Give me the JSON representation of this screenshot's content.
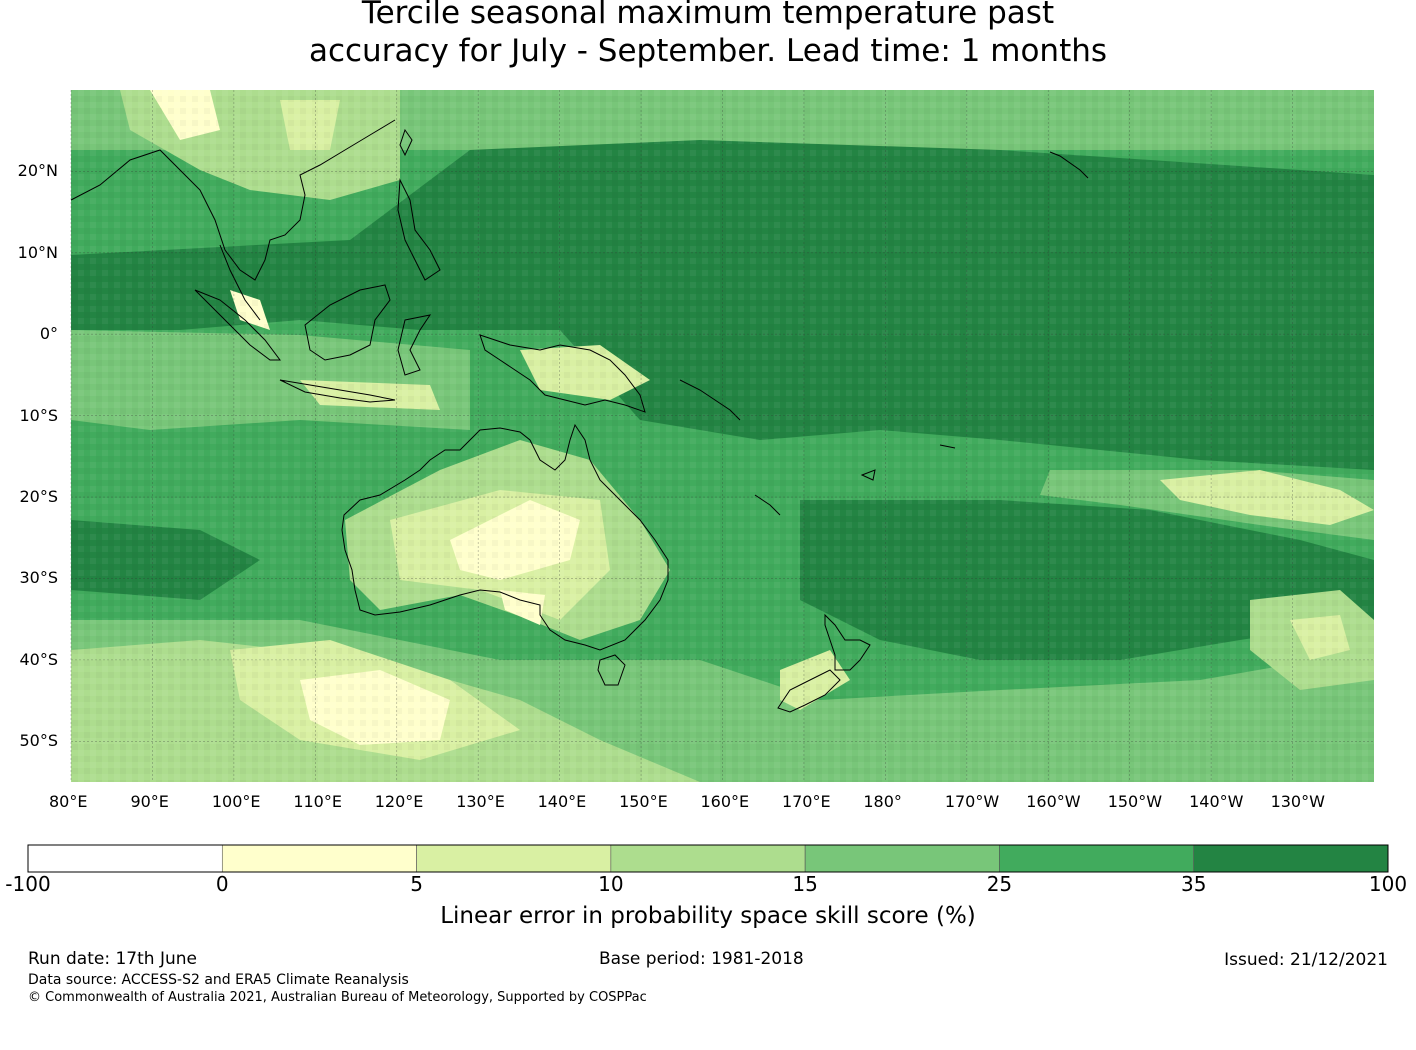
{
  "title": {
    "line1": "Tercile seasonal maximum temperature past",
    "line2": "accuracy for July - September. Lead time: 1 months"
  },
  "map": {
    "lat_labels": [
      "20°N",
      "10°N",
      "0°",
      "10°S",
      "20°S",
      "30°S",
      "40°S",
      "50°S"
    ],
    "lat_values": [
      20,
      10,
      0,
      -10,
      -20,
      -30,
      -40,
      -50
    ],
    "lon_labels": [
      "80°E",
      "90°E",
      "100°E",
      "110°E",
      "120°E",
      "130°E",
      "140°E",
      "150°E",
      "160°E",
      "170°E",
      "180°",
      "170°W",
      "160°W",
      "150°W",
      "140°W",
      "130°W"
    ],
    "lon_values": [
      80,
      90,
      100,
      110,
      120,
      130,
      140,
      150,
      160,
      170,
      180,
      190,
      200,
      210,
      220,
      230
    ],
    "lon_range": [
      80,
      240
    ],
    "lat_range": [
      -55,
      30
    ],
    "gridlines": true,
    "coastlines": true
  },
  "colorbar": {
    "label": "Linear error in probability space skill score (%)",
    "ticks": [
      "-100",
      "0",
      "5",
      "10",
      "15",
      "25",
      "35",
      "100"
    ],
    "colors": [
      "#ffffff",
      "#ffffcc",
      "#d9f0a3",
      "#addd8e",
      "#78c679",
      "#41ab5d",
      "#238443"
    ]
  },
  "footer": {
    "run_date": "Run date: 17th June",
    "base_period": "Base period: 1981-2018",
    "issued": "Issued: 21/12/2021",
    "data_source": "Data source: ACCESS-S2 and ERA5 Climate Reanalysis",
    "copyright": "© Commonwealth of Australia 2021, Australian Bureau of Meteorology, Supported by COSPPac"
  }
}
